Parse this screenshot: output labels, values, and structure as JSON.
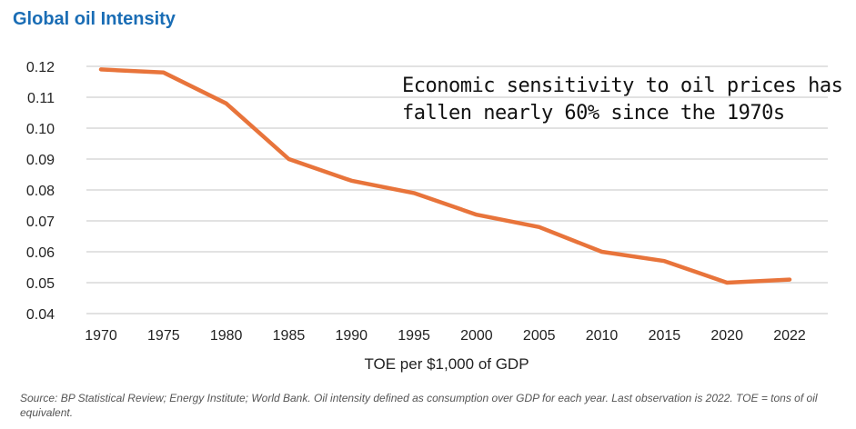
{
  "chart_data": {
    "type": "line",
    "title": "Global oil Intensity",
    "xlabel": "TOE per $1,000 of GDP",
    "ylabel": "",
    "categories": [
      "1970",
      "1975",
      "1980",
      "1985",
      "1990",
      "1995",
      "2000",
      "2005",
      "2010",
      "2015",
      "2020",
      "2022"
    ],
    "values": [
      0.119,
      0.118,
      0.108,
      0.09,
      0.083,
      0.079,
      0.072,
      0.068,
      0.06,
      0.057,
      0.05,
      0.051
    ],
    "ylim": [
      0.04,
      0.12
    ],
    "yticks": [
      "0.12",
      "0.11",
      "0.10",
      "0.09",
      "0.08",
      "0.07",
      "0.06",
      "0.05",
      "0.04"
    ],
    "grid": true,
    "line_color": "#e8743b",
    "annotation": [
      "Economic sensitivity to oil prices has",
      "fallen nearly 60% since the 1970s"
    ]
  },
  "source": "Source: BP Statistical Review; Energy Institute; World Bank. Oil intensity defined as consumption over GDP for each year. Last observation is 2022. TOE = tons of oil equivalent."
}
